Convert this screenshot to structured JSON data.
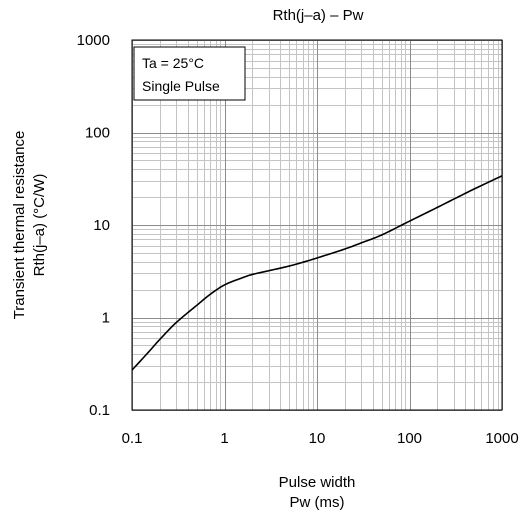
{
  "chart_data": {
    "type": "line",
    "title": "Rth(j–a) – Pw",
    "xlabel_lines": [
      "Pulse width",
      "Pw (ms)"
    ],
    "ylabel_lines": [
      "Transient thermal resistance",
      "Rth(j–a) (°C/W)"
    ],
    "xscale": "log",
    "yscale": "log",
    "xlim": [
      0.1,
      1000
    ],
    "ylim": [
      0.1,
      1000
    ],
    "grid": true,
    "x_ticks": [
      0.1,
      1,
      10,
      100,
      1000
    ],
    "x_tick_labels": [
      "0.1",
      "1",
      "10",
      "100",
      "1000"
    ],
    "y_ticks": [
      0.1,
      1,
      10,
      100,
      1000
    ],
    "y_tick_labels": [
      "0.1",
      "1",
      "10",
      "100",
      "1000"
    ],
    "annotation_lines": [
      "Ta = 25°C",
      "Single Pulse"
    ],
    "series": [
      {
        "points": [
          [
            0.1,
            0.27
          ],
          [
            0.15,
            0.42
          ],
          [
            0.2,
            0.58
          ],
          [
            0.3,
            0.88
          ],
          [
            0.5,
            1.35
          ],
          [
            0.7,
            1.78
          ],
          [
            1.0,
            2.25
          ],
          [
            1.5,
            2.65
          ],
          [
            2.0,
            2.92
          ],
          [
            3.0,
            3.2
          ],
          [
            5.0,
            3.6
          ],
          [
            7.0,
            3.95
          ],
          [
            10,
            4.4
          ],
          [
            20,
            5.5
          ],
          [
            30,
            6.4
          ],
          [
            50,
            7.8
          ],
          [
            100,
            11.0
          ],
          [
            200,
            15.5
          ],
          [
            300,
            19.0
          ],
          [
            500,
            24.5
          ],
          [
            1000,
            34.0
          ]
        ]
      }
    ],
    "colors": {
      "line": "#000000",
      "major_grid": "#8c8c8c",
      "minor_grid": "#c4c4c4",
      "frame": "#000000"
    }
  }
}
